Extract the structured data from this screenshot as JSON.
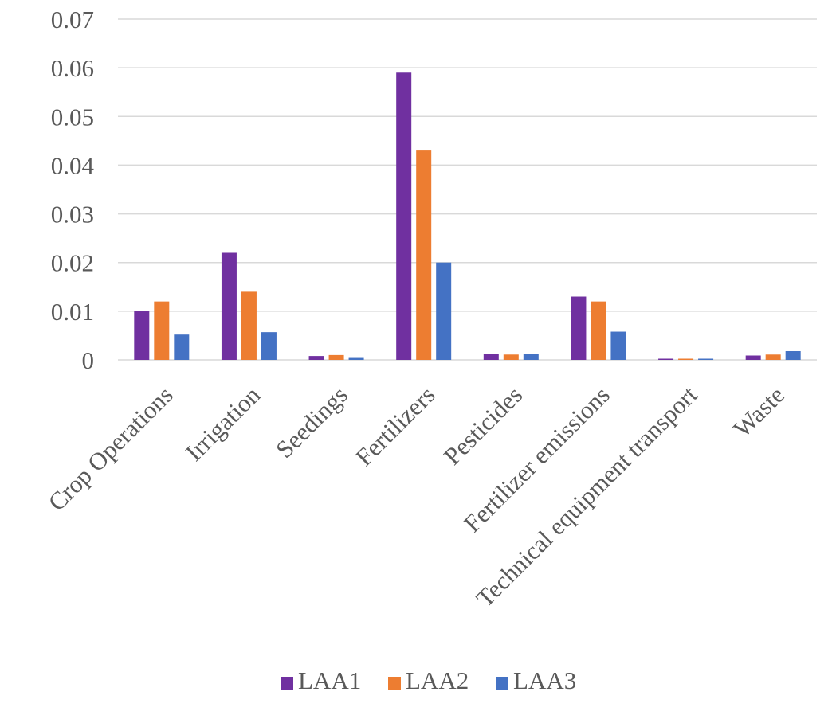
{
  "chart_data": {
    "type": "bar",
    "title": "",
    "xlabel": "",
    "ylabel": "",
    "ylim": [
      0,
      0.07
    ],
    "yticks": [
      "0",
      "0.01",
      "0.02",
      "0.03",
      "0.04",
      "0.05",
      "0.06",
      "0.07"
    ],
    "grid": true,
    "legend_position": "bottom",
    "categories": [
      "Crop Operations",
      "Irrigation",
      "Seedings",
      "Fertilizers",
      "Pesticides",
      "Fertilizer emissions",
      "Technical equipment transport",
      "Waste"
    ],
    "series": [
      {
        "name": "LAA1",
        "color": "#7030a0",
        "values": [
          0.01,
          0.022,
          0.0008,
          0.059,
          0.0012,
          0.013,
          0.0002,
          0.0009
        ]
      },
      {
        "name": "LAA2",
        "color": "#ed7d31",
        "values": [
          0.012,
          0.014,
          0.001,
          0.043,
          0.0011,
          0.012,
          0.0002,
          0.0011
        ]
      },
      {
        "name": "LAA3",
        "color": "#4472c4",
        "values": [
          0.0052,
          0.0057,
          0.0004,
          0.02,
          0.0013,
          0.0058,
          0.0002,
          0.0018
        ]
      }
    ]
  }
}
